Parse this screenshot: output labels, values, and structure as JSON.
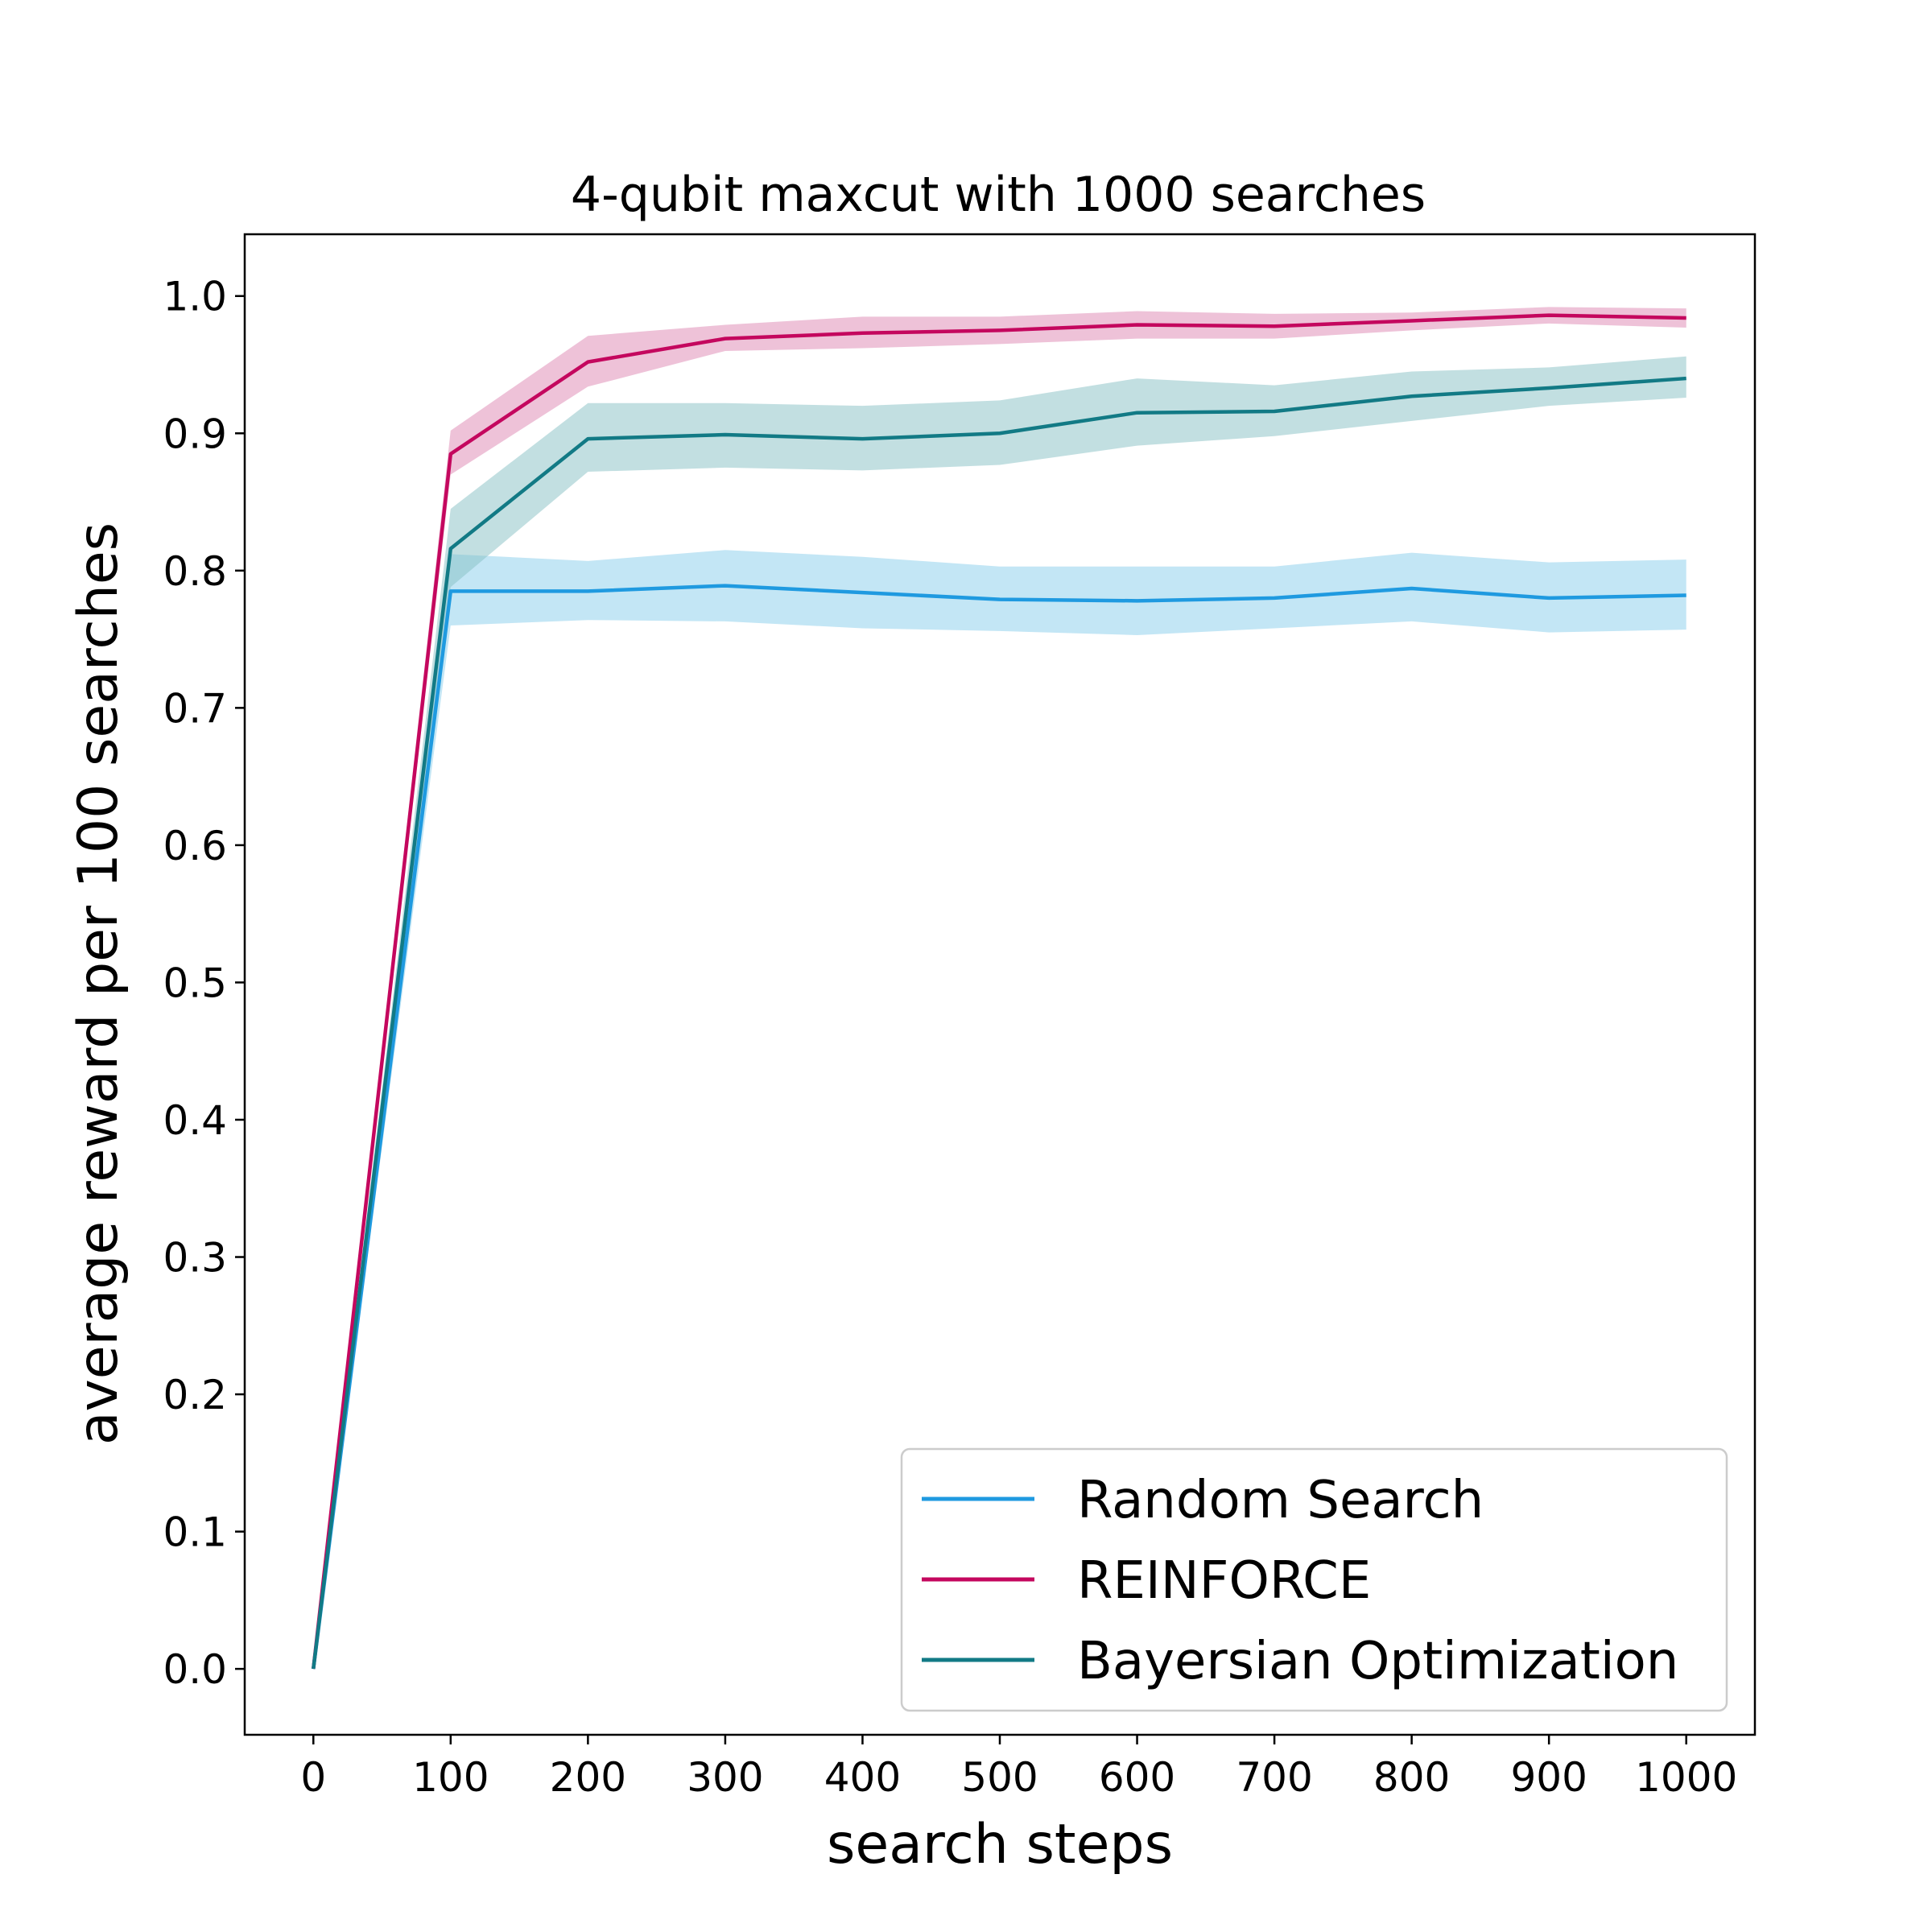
{
  "chart_data": {
    "type": "line",
    "title": "4-qubit maxcut with 1000 searches",
    "xlabel": "search steps",
    "ylabel": "average reward per 100 searches",
    "xlim": [
      -50,
      1050
    ],
    "ylim": [
      -0.048,
      1.045
    ],
    "x_ticks": [
      "0",
      "100",
      "200",
      "300",
      "400",
      "500",
      "600",
      "700",
      "800",
      "900",
      "1000"
    ],
    "y_ticks": [
      "0.0",
      "0.1",
      "0.2",
      "0.3",
      "0.4",
      "0.5",
      "0.6",
      "0.7",
      "0.8",
      "0.9",
      "1.0"
    ],
    "x": [
      0,
      100,
      200,
      300,
      400,
      500,
      600,
      700,
      800,
      900,
      1000
    ],
    "grid": false,
    "legend_position": "bottom-right",
    "series": [
      {
        "name": "Random Search",
        "color": "#1f9ae0",
        "band_color": "#87ceeb",
        "values": [
          0.0,
          0.785,
          0.785,
          0.789,
          0.784,
          0.779,
          0.778,
          0.78,
          0.787,
          0.78,
          0.782
        ],
        "lower": [
          0.0,
          0.76,
          0.764,
          0.763,
          0.758,
          0.756,
          0.753,
          0.758,
          0.763,
          0.755,
          0.757
        ],
        "upper": [
          0.0,
          0.812,
          0.807,
          0.815,
          0.81,
          0.803,
          0.803,
          0.803,
          0.813,
          0.806,
          0.808
        ]
      },
      {
        "name": "REINFORCE",
        "color": "#c4075e",
        "band_color": "#dd85b2",
        "values": [
          0.0,
          0.885,
          0.952,
          0.969,
          0.973,
          0.975,
          0.979,
          0.978,
          0.982,
          0.986,
          0.984
        ],
        "lower": [
          0.0,
          0.87,
          0.934,
          0.96,
          0.962,
          0.965,
          0.969,
          0.969,
          0.975,
          0.98,
          0.977
        ],
        "upper": [
          0.0,
          0.902,
          0.971,
          0.979,
          0.985,
          0.985,
          0.989,
          0.987,
          0.988,
          0.992,
          0.991
        ]
      },
      {
        "name": "Bayersian Optimization",
        "color": "#127a85",
        "band_color": "#85c0c4",
        "values": [
          0.0,
          0.816,
          0.896,
          0.899,
          0.896,
          0.9,
          0.915,
          0.916,
          0.927,
          0.933,
          0.94
        ],
        "lower": [
          0.0,
          0.788,
          0.872,
          0.875,
          0.873,
          0.877,
          0.891,
          0.898,
          0.909,
          0.92,
          0.926
        ],
        "upper": [
          0.0,
          0.845,
          0.922,
          0.922,
          0.92,
          0.924,
          0.94,
          0.935,
          0.945,
          0.948,
          0.956
        ]
      }
    ]
  }
}
